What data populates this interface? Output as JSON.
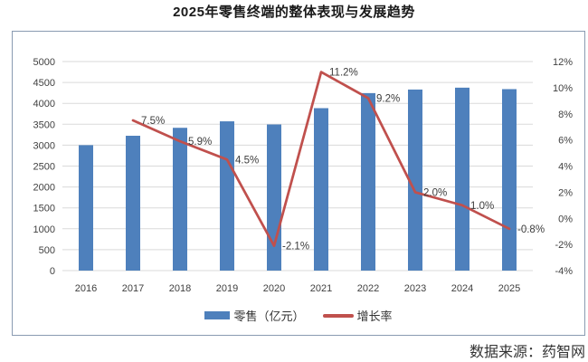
{
  "title": "2025年零售终端的整体表现与发展趋势",
  "source": "数据来源：药智网",
  "legend": {
    "bar_label": "零售（亿元）",
    "line_label": "增长率"
  },
  "colors": {
    "bar": "#4e80bc",
    "line": "#c0504d",
    "grid": "#dadada",
    "axis_text": "#404040",
    "data_label": "#3d3d3d",
    "frame_border": "#8a9bb1"
  },
  "chart_data": {
    "type": "bar",
    "subtype": "bar-line combo, dual axis",
    "title": "2025年零售终端的整体表现与发展趋势",
    "categories": [
      "2016",
      "2017",
      "2018",
      "2019",
      "2020",
      "2021",
      "2022",
      "2023",
      "2024",
      "2025"
    ],
    "series": [
      {
        "name": "零售（亿元）",
        "type": "bar",
        "axis": "left",
        "values": [
          3000,
          3225,
          3415,
          3570,
          3495,
          3885,
          4245,
          4330,
          4375,
          4340
        ]
      },
      {
        "name": "增长率",
        "type": "line",
        "axis": "right",
        "values": [
          null,
          7.5,
          5.9,
          4.5,
          -2.1,
          11.2,
          9.2,
          2.0,
          1.0,
          -0.8
        ],
        "point_labels": [
          null,
          "7.5%",
          "5.9%",
          "4.5%",
          "-2.1%",
          "11.2%",
          "9.2%",
          "2.0%",
          "1.0%",
          "-0.8%"
        ]
      }
    ],
    "left_axis": {
      "min": 0,
      "max": 5000,
      "step": 500
    },
    "right_axis": {
      "min": -4,
      "max": 12,
      "step": 2,
      "suffix": "%"
    },
    "grid": true,
    "legend_position": "bottom"
  }
}
